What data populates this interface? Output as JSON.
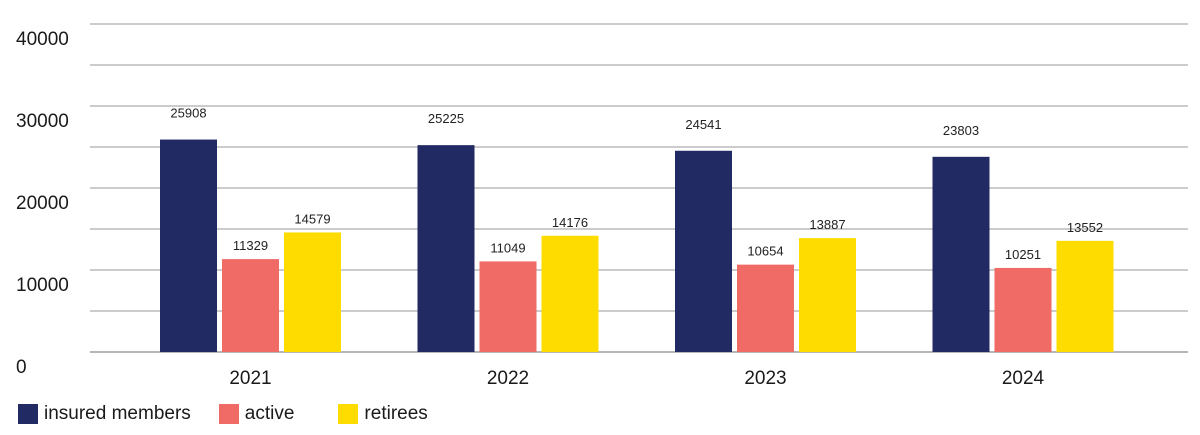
{
  "chart_data": {
    "type": "bar",
    "categories": [
      "2021",
      "2022",
      "2023",
      "2024"
    ],
    "series": [
      {
        "name": "insured members",
        "values": [
          25908,
          25225,
          24541,
          23803
        ],
        "color": "#212a63"
      },
      {
        "name": "active",
        "values": [
          11329,
          11049,
          10654,
          10251
        ],
        "color": "#f06a66"
      },
      {
        "name": "retirees",
        "values": [
          14579,
          14176,
          13887,
          13552
        ],
        "color": "#ffdc00"
      }
    ],
    "yticks": [
      {
        "value": 0,
        "label": "0"
      },
      {
        "value": 10000,
        "label": "10000"
      },
      {
        "value": 20000,
        "label": "20000"
      },
      {
        "value": 30000,
        "label": "30000"
      },
      {
        "value": 40000,
        "label": "40000"
      }
    ],
    "ylim": [
      0,
      40000
    ],
    "grid_step": 5000,
    "grid": true,
    "legend": "bottom-left",
    "title": "",
    "xlabel": "",
    "ylabel": ""
  }
}
